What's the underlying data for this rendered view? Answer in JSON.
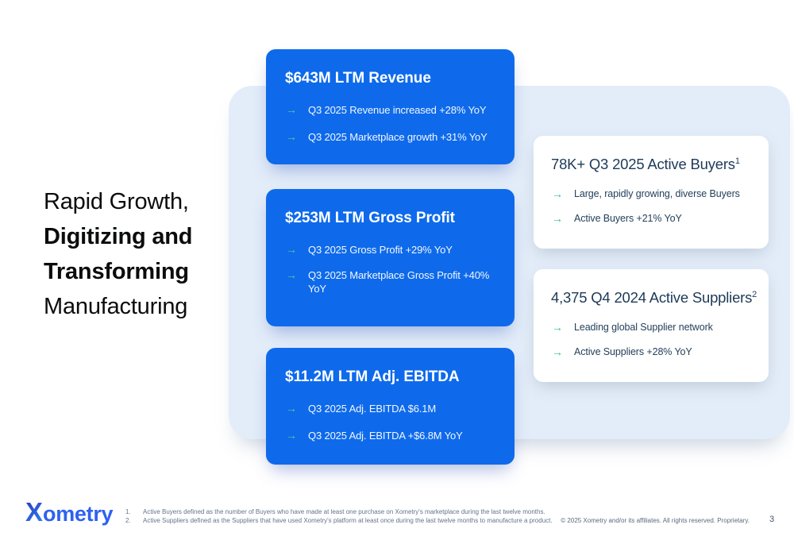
{
  "title": {
    "line1": "Rapid Growth,",
    "line2": "Digitizing and",
    "line3": "Transforming",
    "line4": "Manufacturing"
  },
  "bullet_icon": "→",
  "metric_cards": [
    {
      "title": "$643M LTM Revenue",
      "bullets": [
        "Q3 2025 Revenue increased +28% YoY",
        "Q3 2025 Marketplace growth +31% YoY"
      ]
    },
    {
      "title": "$253M LTM Gross Profit",
      "bullets": [
        "Q3 2025 Gross Profit +29% YoY",
        "Q3 2025 Marketplace Gross Profit +40% YoY"
      ]
    },
    {
      "title": "$11.2M LTM Adj. EBITDA",
      "bullets": [
        "Q3 2025 Adj. EBITDA $6.1M",
        "Q3 2025 Adj. EBITDA +$6.8M YoY"
      ]
    }
  ],
  "info_cards": [
    {
      "title": "78K+ Q3 2025 Active Buyers",
      "superscript": "1",
      "bullets": [
        "Large, rapidly growing, diverse Buyers",
        "Active Buyers +21% YoY"
      ]
    },
    {
      "title": "4,375 Q4 2024 Active Suppliers",
      "superscript": "2",
      "bullets": [
        "Leading global Supplier network",
        "Active Suppliers +28% YoY"
      ]
    }
  ],
  "footer": {
    "logo_x": "X",
    "logo_rest": "ometry",
    "footnotes": [
      {
        "number": "1.",
        "text": "Active Buyers defined as the number of Buyers who have made at least one purchase on Xometry's marketplace during the last twelve months."
      },
      {
        "number": "2.",
        "text": "Active Suppliers defined as the Suppliers that have used Xometry's platform at least once during the last twelve months to manufacture a product."
      }
    ],
    "copyright": "© 2025  Xometry and/or its affiliates. All rights reserved. Proprietary.",
    "page_number": "3"
  },
  "colors": {
    "card_blue": "#0e6aeb",
    "panel_light_blue": "#e3edf9",
    "arrow_green_on_blue": "#45d49a",
    "arrow_green_on_white": "#2fc08c",
    "navy_text": "#1d3a57",
    "logo_blue": "#2e62f0"
  }
}
